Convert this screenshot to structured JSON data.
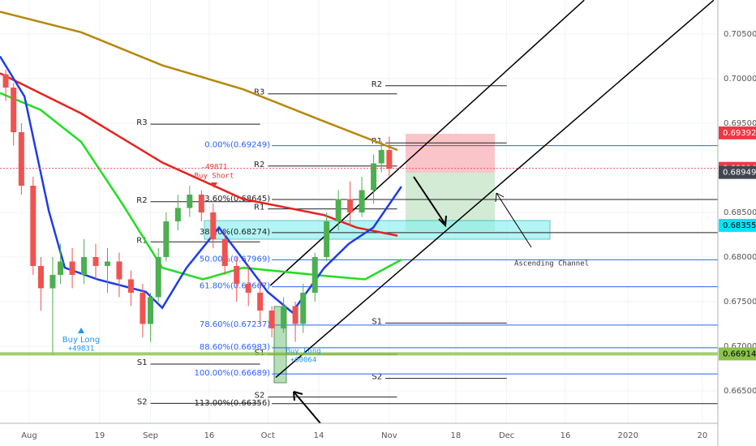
{
  "chart_data": {
    "type": "candlestick",
    "xlim": [
      -7.46,
      175.96
    ],
    "ylim": [
      0.66136,
      0.70882
    ],
    "grid": true,
    "xticks": [
      {
        "value": 0,
        "label": "Aug"
      },
      {
        "value": 18,
        "label": "19"
      },
      {
        "value": 31,
        "label": "Sep"
      },
      {
        "value": 46,
        "label": "16"
      },
      {
        "value": 61,
        "label": "Oct"
      },
      {
        "value": 74,
        "label": "14"
      },
      {
        "value": 92,
        "label": "Nov"
      },
      {
        "value": 109,
        "label": "18"
      },
      {
        "value": 122,
        "label": "Dec"
      },
      {
        "value": 137,
        "label": "16"
      },
      {
        "value": 153,
        "label": "2020"
      },
      {
        "value": 172,
        "label": "20"
      }
    ],
    "yticks": [
      {
        "value": 0.705,
        "label": "0.70500"
      },
      {
        "value": 0.7,
        "label": "0.70000"
      },
      {
        "value": 0.695,
        "label": "0.69500"
      },
      {
        "value": 0.69,
        "label": "0.69000"
      },
      {
        "value": 0.685,
        "label": "0.68500"
      },
      {
        "value": 0.68,
        "label": "0.68000"
      },
      {
        "value": 0.675,
        "label": "0.67500"
      },
      {
        "value": 0.67,
        "label": "0.67000"
      },
      {
        "value": 0.665,
        "label": "0.66500"
      }
    ],
    "up_color": "#4caf50",
    "down_color": "#ef5350",
    "candles": {
      "x": [
        -6,
        -4,
        -2,
        1,
        3,
        6,
        8,
        11,
        14,
        17,
        20,
        23,
        26,
        29,
        31,
        33,
        35,
        38,
        41,
        44,
        47,
        50,
        53,
        56,
        59,
        62,
        65,
        68,
        70,
        73,
        76,
        79,
        82,
        85,
        88,
        90,
        92
      ],
      "open": [
        0.7005,
        0.699,
        0.694,
        0.688,
        0.679,
        0.6765,
        0.678,
        0.6795,
        0.678,
        0.68,
        0.679,
        0.6795,
        0.6775,
        0.676,
        0.6725,
        0.6755,
        0.68,
        0.684,
        0.6855,
        0.687,
        0.685,
        0.682,
        0.679,
        0.677,
        0.676,
        0.674,
        0.672,
        0.6745,
        0.6725,
        0.676,
        0.68,
        0.684,
        0.6865,
        0.685,
        0.6875,
        0.6905,
        0.692
      ],
      "high": [
        0.701,
        0.6995,
        0.695,
        0.689,
        0.68,
        0.68,
        0.6815,
        0.681,
        0.682,
        0.6815,
        0.681,
        0.6805,
        0.6785,
        0.677,
        0.676,
        0.681,
        0.685,
        0.687,
        0.688,
        0.6875,
        0.686,
        0.683,
        0.68,
        0.679,
        0.6775,
        0.6745,
        0.6755,
        0.675,
        0.677,
        0.6805,
        0.685,
        0.6875,
        0.6885,
        0.689,
        0.6915,
        0.693,
        0.6935
      ],
      "low": [
        0.6975,
        0.6925,
        0.687,
        0.678,
        0.674,
        0.669,
        0.677,
        0.6765,
        0.677,
        0.6775,
        0.676,
        0.6755,
        0.6745,
        0.671,
        0.6705,
        0.675,
        0.6795,
        0.683,
        0.6845,
        0.684,
        0.681,
        0.678,
        0.675,
        0.6745,
        0.6725,
        0.671,
        0.6715,
        0.6705,
        0.6715,
        0.675,
        0.6795,
        0.683,
        0.6835,
        0.6845,
        0.686,
        0.6895,
        0.689
      ],
      "close": [
        0.699,
        0.694,
        0.688,
        0.679,
        0.6765,
        0.678,
        0.6795,
        0.678,
        0.68,
        0.679,
        0.6795,
        0.6775,
        0.676,
        0.6725,
        0.6755,
        0.68,
        0.684,
        0.6855,
        0.687,
        0.685,
        0.682,
        0.679,
        0.677,
        0.676,
        0.674,
        0.672,
        0.6745,
        0.6725,
        0.676,
        0.68,
        0.684,
        0.6865,
        0.685,
        0.6875,
        0.6905,
        0.692,
        0.6899
      ]
    },
    "moving_averages": [
      {
        "color": "#b8860b",
        "x": [
          -7.46,
          13.3,
          34,
          54.7,
          75.4,
          94.1
        ],
        "values": [
          0.7075,
          0.7052,
          0.7015,
          0.6988,
          0.6952,
          0.692
        ]
      },
      {
        "color": "#e8211f",
        "x": [
          -7.46,
          13.3,
          34,
          54.7,
          75.4,
          83.7,
          94.1
        ],
        "values": [
          0.7006,
          0.6961,
          0.6906,
          0.6865,
          0.6847,
          0.6833,
          0.6824
        ]
      },
      {
        "color": "#22dd22",
        "x": [
          -7.46,
          2.9,
          13.3,
          23.6,
          34,
          44.4,
          54.7,
          75.4,
          85.8,
          95.1
        ],
        "values": [
          0.6984,
          0.6965,
          0.6929,
          0.6861,
          0.6788,
          0.6775,
          0.6788,
          0.6779,
          0.6775,
          0.6797
        ]
      },
      {
        "color": "#1e3ce8",
        "x": [
          -7.46,
          -1.2,
          5,
          9.1,
          17.4,
          29.8,
          34,
          40.2,
          48.5,
          54.7,
          60.9,
          67.2,
          75.4,
          81.7,
          87.9,
          95.1
        ],
        "values": [
          0.7025,
          0.698,
          0.6852,
          0.6788,
          0.6775,
          0.6761,
          0.6743,
          0.6788,
          0.6833,
          0.6797,
          0.6761,
          0.6738,
          0.6788,
          0.6815,
          0.6833,
          0.6879
        ]
      }
    ],
    "fib_levels": [
      {
        "label": "0.00%(0.69249)",
        "value": 0.69249,
        "color": "#2962ff"
      },
      {
        "label": "23.60%(0.68645)",
        "value": 0.68645,
        "color": "#222222"
      },
      {
        "label": "38.20%(0.68274)",
        "value": 0.68274,
        "color": "#222222"
      },
      {
        "label": "50.00%(0.67969)",
        "value": 0.67969,
        "color": "#2962ff"
      },
      {
        "label": "61.80%(0.67667)",
        "value": 0.67667,
        "color": "#2962ff"
      },
      {
        "label": "78.60%(0.67237)",
        "value": 0.67237,
        "color": "#2962ff"
      },
      {
        "label": "88.60%(0.66983)",
        "value": 0.66983,
        "color": "#2962ff"
      },
      {
        "label": "100.00%(0.66689)",
        "value": 0.66689,
        "color": "#2962ff"
      },
      {
        "label": "113.00%(0.66356)",
        "value": 0.66356,
        "color": "#222222"
      }
    ],
    "fib_from": 62,
    "pivots": [
      {
        "label": "R3",
        "value": 0.6949,
        "x": [
          31,
          59
        ]
      },
      {
        "label": "R2",
        "value": 0.6862,
        "x": [
          31,
          59
        ]
      },
      {
        "label": "R1",
        "value": 0.6817,
        "x": [
          31,
          59
        ]
      },
      {
        "label": "S1",
        "value": 0.668,
        "x": [
          31,
          59
        ]
      },
      {
        "label": "S2",
        "value": 0.6636,
        "x": [
          31,
          59
        ]
      },
      {
        "label": "R3",
        "value": 0.6983,
        "x": [
          61,
          94
        ]
      },
      {
        "label": "R2",
        "value": 0.6902,
        "x": [
          61,
          94
        ]
      },
      {
        "label": "R1",
        "value": 0.6854,
        "x": [
          61,
          94
        ]
      },
      {
        "label": "S1",
        "value": 0.6691,
        "x": [
          61,
          94
        ]
      },
      {
        "label": "S2",
        "value": 0.6643,
        "x": [
          61,
          94
        ]
      },
      {
        "label": "R2",
        "value": 0.6992,
        "x": [
          91,
          122
        ]
      },
      {
        "label": "R1",
        "value": 0.6928,
        "x": [
          91,
          122
        ]
      },
      {
        "label": "S1",
        "value": 0.6726,
        "x": [
          91,
          122
        ]
      },
      {
        "label": "S2",
        "value": 0.6664,
        "x": [
          91,
          122
        ]
      }
    ],
    "channel": [
      {
        "x": [
          61.6,
          141.8
        ],
        "y": [
          0.6768,
          0.7088
        ]
      },
      {
        "x": [
          63,
          174.9
        ],
        "y": [
          0.6665,
          0.7088
        ]
      }
    ],
    "price_labels": [
      {
        "value": 0.69392,
        "color": "#f23645",
        "text_color": "#ffffff"
      },
      {
        "value": 0.68994,
        "color": "#f23645",
        "text_color": "#ffffff",
        "line": "dotted"
      },
      {
        "value": 0.68949,
        "color": "#434651",
        "text_color": "#ffffff"
      },
      {
        "value": 0.68355,
        "color": "#00e5ff",
        "text_color": "#000000"
      },
      {
        "value": 0.66914,
        "color": "#8bc34a",
        "text_color": "#000000",
        "line": "solid"
      }
    ],
    "annotations": [
      "Buy Long",
      "+49831",
      "-49871",
      "Buy Short",
      "Buy Long",
      "+60064",
      "Ascending Channel"
    ]
  }
}
